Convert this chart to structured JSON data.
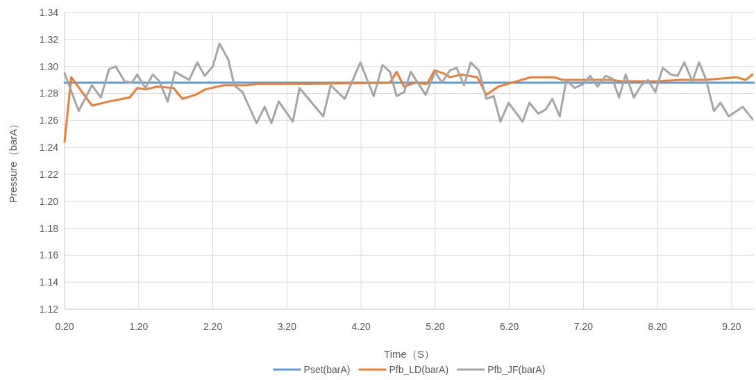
{
  "chart_data": {
    "type": "line",
    "xlabel": "Time（S）",
    "ylabel": "Pressure（barA）",
    "xlim": [
      0.2,
      9.5
    ],
    "ylim": [
      1.12,
      1.34
    ],
    "xticks": [
      {
        "value": 0.2,
        "label": "0.20"
      },
      {
        "value": 1.2,
        "label": "1.20"
      },
      {
        "value": 2.2,
        "label": "2.20"
      },
      {
        "value": 3.2,
        "label": "3.20"
      },
      {
        "value": 4.2,
        "label": "4.20"
      },
      {
        "value": 5.2,
        "label": "5.20"
      },
      {
        "value": 6.2,
        "label": "6.20"
      },
      {
        "value": 7.2,
        "label": "7.20"
      },
      {
        "value": 8.2,
        "label": "8.20"
      },
      {
        "value": 9.2,
        "label": "9.20"
      }
    ],
    "yticks": [
      {
        "value": 1.12,
        "label": "1.12"
      },
      {
        "value": 1.14,
        "label": "1.14"
      },
      {
        "value": 1.16,
        "label": "1.16"
      },
      {
        "value": 1.18,
        "label": "1.18"
      },
      {
        "value": 1.2,
        "label": "1.20"
      },
      {
        "value": 1.22,
        "label": "1.22"
      },
      {
        "value": 1.24,
        "label": "1.24"
      },
      {
        "value": 1.26,
        "label": "1.26"
      },
      {
        "value": 1.28,
        "label": "1.28"
      },
      {
        "value": 1.3,
        "label": "1.30"
      },
      {
        "value": 1.32,
        "label": "1.32"
      },
      {
        "value": 1.34,
        "label": "1.34"
      }
    ],
    "grid": true,
    "legend": "bottom",
    "marker": "none",
    "line_style": "solid",
    "series": [
      {
        "name": "Pset(barA)",
        "color": "#5b9bd5",
        "x": [
          0.2,
          9.5
        ],
        "values": [
          1.288,
          1.288
        ]
      },
      {
        "name": "Pfb_LD(barA)",
        "color": "#ed7d31",
        "x": [
          0.2,
          0.29,
          0.57,
          0.8,
          1.08,
          1.18,
          1.29,
          1.45,
          1.67,
          1.79,
          1.97,
          2.1,
          2.35,
          2.66,
          2.81,
          3.28,
          4.59,
          4.68,
          4.78,
          4.93,
          5.09,
          5.19,
          5.31,
          5.4,
          5.56,
          5.77,
          5.89,
          6.05,
          6.24,
          6.49,
          6.8,
          6.92,
          7.58,
          7.71,
          8.2,
          8.51,
          8.83,
          9.26,
          9.39,
          9.48
        ],
        "values": [
          1.244,
          1.292,
          1.271,
          1.274,
          1.277,
          1.284,
          1.283,
          1.285,
          1.284,
          1.276,
          1.279,
          1.283,
          1.286,
          1.286,
          1.287,
          1.287,
          1.288,
          1.296,
          1.285,
          1.288,
          1.287,
          1.297,
          1.295,
          1.292,
          1.294,
          1.292,
          1.279,
          1.285,
          1.288,
          1.292,
          1.292,
          1.29,
          1.29,
          1.289,
          1.289,
          1.29,
          1.29,
          1.292,
          1.29,
          1.294
        ]
      },
      {
        "name": "Pfb_JF(barA)",
        "color": "#a5a5a5",
        "x": [
          0.2,
          0.39,
          0.57,
          0.69,
          0.8,
          0.89,
          1.01,
          1.11,
          1.18,
          1.29,
          1.39,
          1.48,
          1.59,
          1.69,
          1.88,
          1.99,
          2.09,
          2.2,
          2.29,
          2.41,
          2.49,
          2.6,
          2.79,
          2.9,
          2.99,
          3.09,
          3.28,
          3.37,
          3.69,
          3.79,
          3.98,
          4.19,
          4.37,
          4.49,
          4.59,
          4.68,
          4.78,
          4.87,
          5.07,
          5.2,
          5.29,
          5.4,
          5.49,
          5.59,
          5.68,
          5.79,
          5.89,
          5.99,
          6.08,
          6.19,
          6.38,
          6.47,
          6.59,
          6.69,
          6.78,
          6.88,
          6.97,
          7.08,
          7.2,
          7.29,
          7.39,
          7.5,
          7.59,
          7.68,
          7.77,
          7.88,
          7.98,
          8.07,
          8.17,
          8.27,
          8.38,
          8.47,
          8.56,
          8.67,
          8.76,
          8.85,
          8.96,
          9.05,
          9.16,
          9.35,
          9.48
        ],
        "values": [
          1.295,
          1.267,
          1.286,
          1.277,
          1.298,
          1.3,
          1.289,
          1.288,
          1.294,
          1.284,
          1.294,
          1.289,
          1.274,
          1.296,
          1.29,
          1.303,
          1.293,
          1.3,
          1.317,
          1.305,
          1.286,
          1.281,
          1.258,
          1.27,
          1.258,
          1.274,
          1.259,
          1.284,
          1.263,
          1.286,
          1.276,
          1.303,
          1.278,
          1.301,
          1.296,
          1.278,
          1.281,
          1.296,
          1.279,
          1.296,
          1.288,
          1.297,
          1.299,
          1.286,
          1.303,
          1.297,
          1.276,
          1.278,
          1.259,
          1.273,
          1.259,
          1.273,
          1.265,
          1.268,
          1.276,
          1.263,
          1.29,
          1.284,
          1.287,
          1.293,
          1.285,
          1.293,
          1.291,
          1.277,
          1.294,
          1.277,
          1.286,
          1.29,
          1.281,
          1.299,
          1.294,
          1.293,
          1.303,
          1.289,
          1.303,
          1.291,
          1.267,
          1.273,
          1.263,
          1.27,
          1.261
        ]
      }
    ]
  }
}
